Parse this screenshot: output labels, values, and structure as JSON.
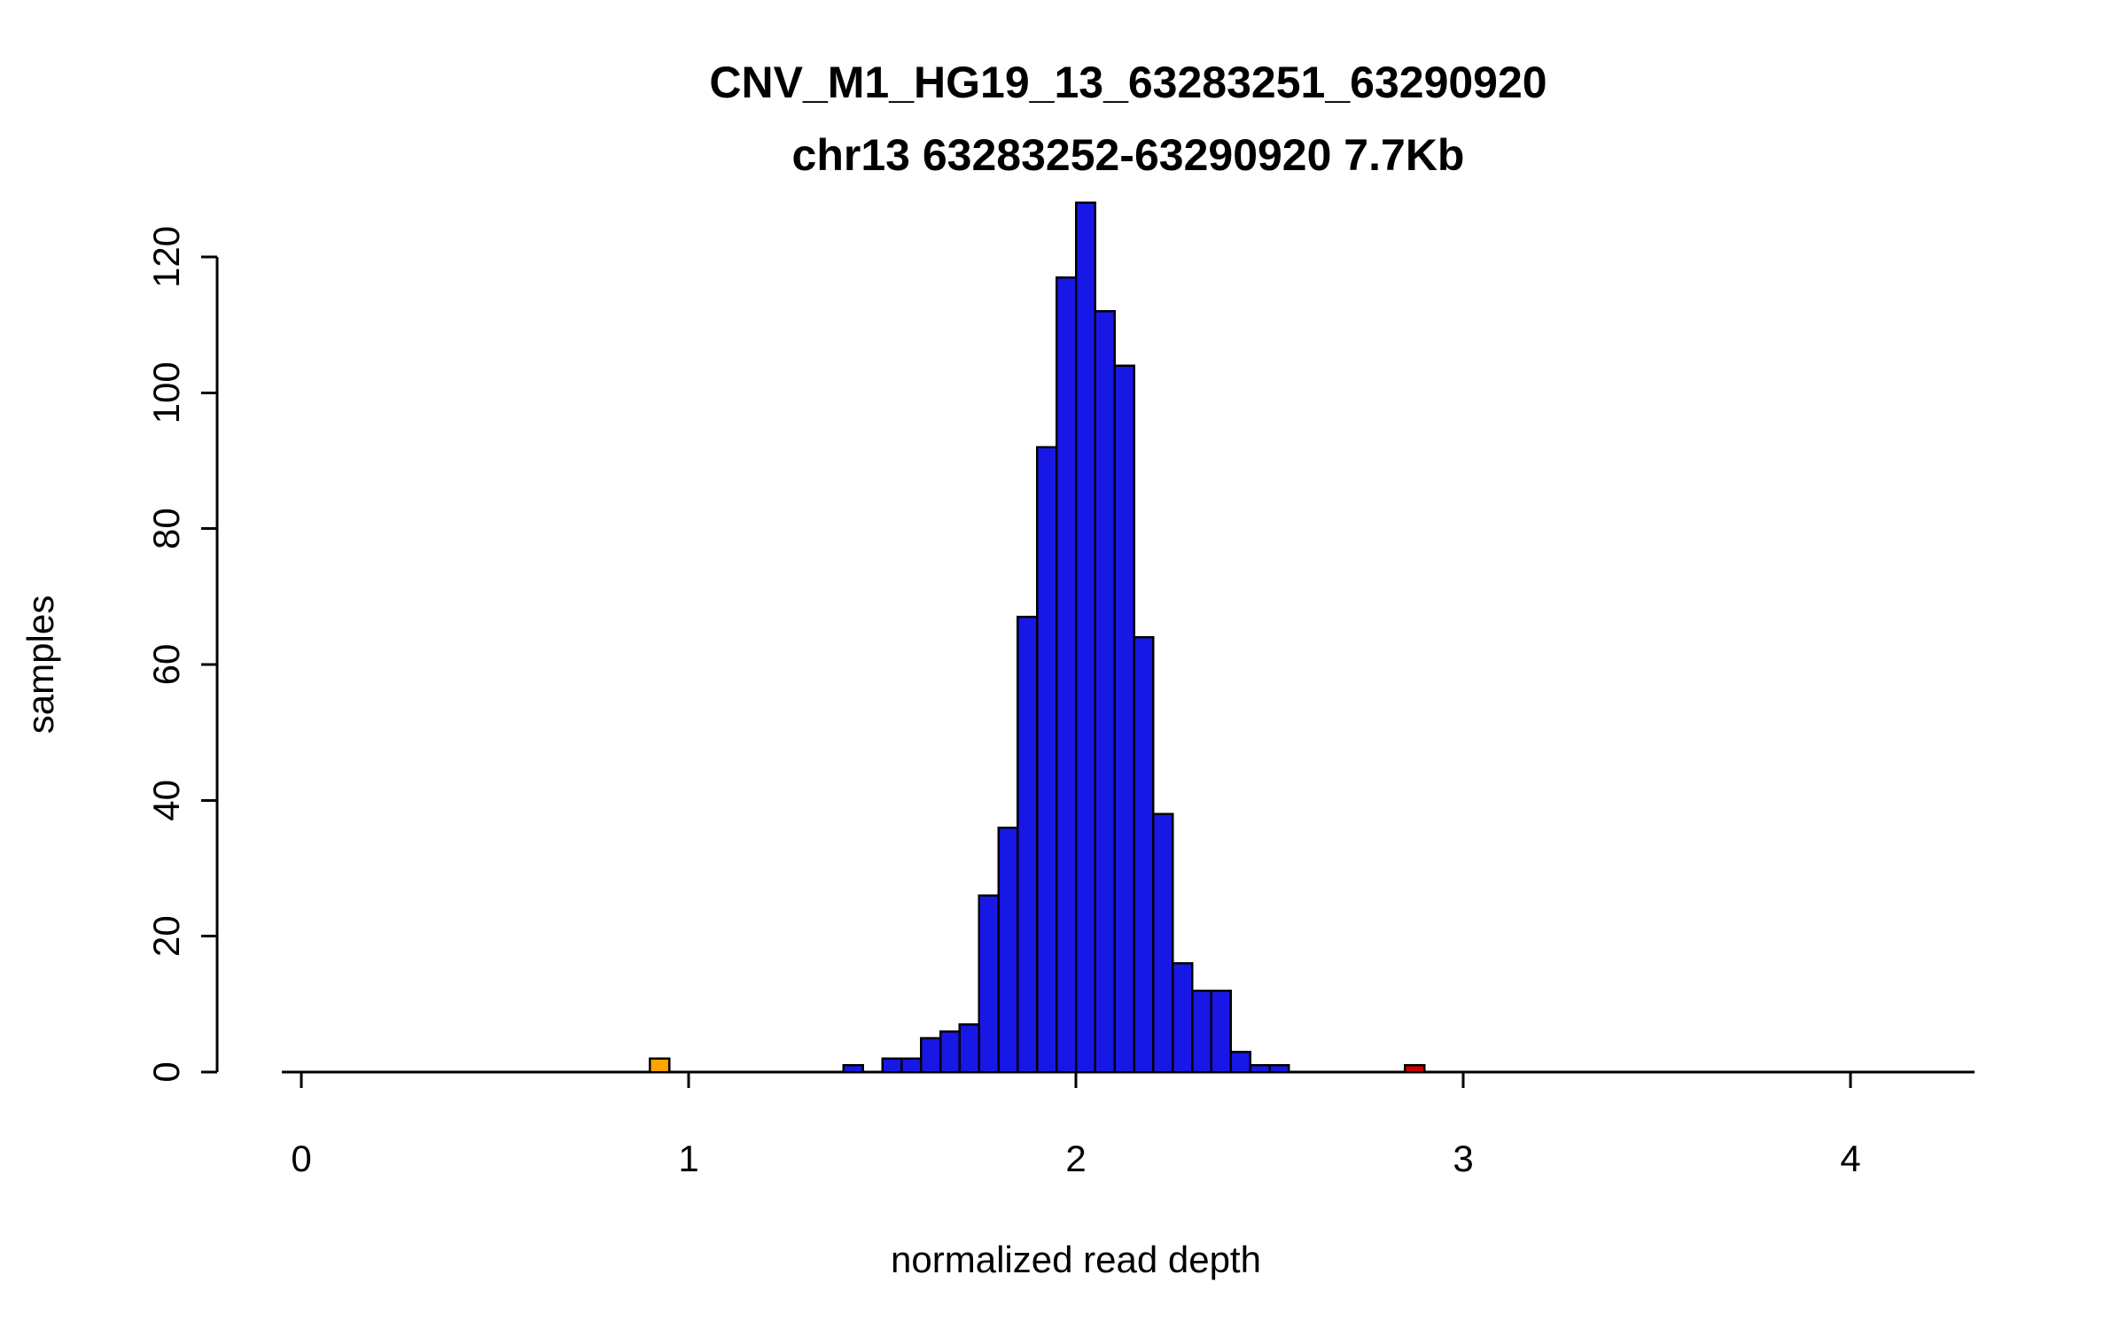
{
  "page": {
    "background": "#ffffff"
  },
  "chart_data": {
    "type": "bar",
    "chart_kind": "histogram",
    "title": "CNV_M1_HG19_13_63283251_63290920",
    "subtitle": "chr13 63283252-63290920 7.7Kb",
    "xlabel": "normalized read depth",
    "ylabel": "samples",
    "x_ticks": [
      0,
      1,
      2,
      3,
      4
    ],
    "y_ticks": [
      0,
      20,
      40,
      60,
      80,
      100,
      120
    ],
    "xlim": [
      -0.06,
      4.34
    ],
    "ylim": [
      0,
      128
    ],
    "bin_width": 0.05,
    "legend": "none",
    "grid": false,
    "colors": {
      "default_fill": "#1818E6",
      "deletion_fill": "#FFA500",
      "duplication_fill": "#CC0000",
      "bar_border": "#000000",
      "axis": "#000000",
      "text": "#000000"
    },
    "bars": [
      {
        "x0": 0.9,
        "count": 2,
        "color": "#FFA500"
      },
      {
        "x0": 1.4,
        "count": 1
      },
      {
        "x0": 1.5,
        "count": 2
      },
      {
        "x0": 1.55,
        "count": 2
      },
      {
        "x0": 1.6,
        "count": 5
      },
      {
        "x0": 1.65,
        "count": 6
      },
      {
        "x0": 1.7,
        "count": 7
      },
      {
        "x0": 1.75,
        "count": 26
      },
      {
        "x0": 1.8,
        "count": 36
      },
      {
        "x0": 1.85,
        "count": 67
      },
      {
        "x0": 1.9,
        "count": 92
      },
      {
        "x0": 1.95,
        "count": 117
      },
      {
        "x0": 2.0,
        "count": 128
      },
      {
        "x0": 2.05,
        "count": 112
      },
      {
        "x0": 2.1,
        "count": 104
      },
      {
        "x0": 2.15,
        "count": 64
      },
      {
        "x0": 2.2,
        "count": 38
      },
      {
        "x0": 2.25,
        "count": 16
      },
      {
        "x0": 2.3,
        "count": 12
      },
      {
        "x0": 2.35,
        "count": 12
      },
      {
        "x0": 2.4,
        "count": 3
      },
      {
        "x0": 2.45,
        "count": 1
      },
      {
        "x0": 2.5,
        "count": 1
      },
      {
        "x0": 2.85,
        "count": 1,
        "color": "#CC0000"
      }
    ]
  }
}
